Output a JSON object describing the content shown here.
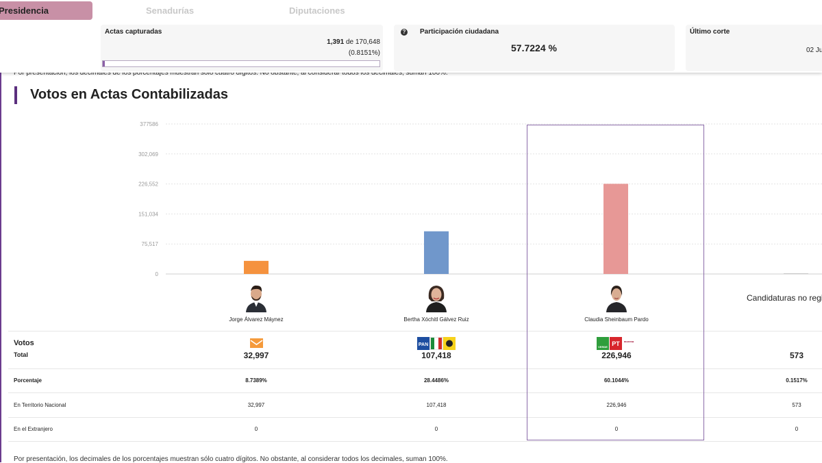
{
  "tabs": {
    "presidencia": "Presidencia",
    "senadurias": "Senadurías",
    "diputaciones": "Diputaciones"
  },
  "stats": {
    "actas_title": "Actas capturadas",
    "actas_count": "1,391",
    "actas_de": "de",
    "actas_total": "170,648",
    "actas_pct": "(0.8151%)",
    "actas_progress": 0.008151,
    "participacion_title": "Participación ciudadana",
    "participacion_value": "57.7224 %",
    "corte_title": "Último corte",
    "corte_value": "02 Ju"
  },
  "note_top": "Por presentación, los decimales de los porcentajes muestran sólo cuatro dígitos. No obstante, al considerar todos los decimales, suman 100%.",
  "section_title": "Votos en Actas Contabilizadas",
  "chart_data": {
    "type": "bar",
    "title": "Votos en Actas Contabilizadas",
    "categories": [
      "Jorge Álvarez Máynez",
      "Bertha Xóchitl Gálvez Ruiz",
      "Claudia Sheinbaum Pardo",
      "Candidaturas no registradas"
    ],
    "values": [
      32997,
      107418,
      226946,
      573
    ],
    "colors": [
      "#f5923e",
      "#7097cb",
      "#e79896",
      "#c8c8c8"
    ],
    "ylim": [
      0,
      377586
    ],
    "yticks": [
      "377586",
      "302,069",
      "226,552",
      "151,034",
      "75,517",
      "0"
    ],
    "ytick_values": [
      377586,
      302069,
      226552,
      151034,
      75517,
      0
    ]
  },
  "candidates": [
    {
      "name": "Jorge Álvarez Máynez",
      "total": "32,997",
      "pct": "8.7389%",
      "nacional": "32,997",
      "extranjero": "0",
      "party": "MC"
    },
    {
      "name": "Bertha Xóchitl Gálvez Ruiz",
      "total": "107,418",
      "pct": "28.4486%",
      "nacional": "107,418",
      "extranjero": "0",
      "party": "PAN PRI PRD"
    },
    {
      "name": "Claudia Sheinbaum Pardo",
      "total": "226,946",
      "pct": "60.1044%",
      "nacional": "226,946",
      "extranjero": "0",
      "party": "VERDE PT MORENA"
    },
    {
      "name": "Candidaturas no regis",
      "total": "573",
      "pct": "0.1517%",
      "nacional": "573",
      "extranjero": "0",
      "party": ""
    }
  ],
  "labels": {
    "votos": "Votos",
    "total": "Total",
    "porcentaje": "Porcentaje",
    "nacional": "En Territorio Nacional",
    "extranjero": "En el Extranjero",
    "logo_pan": "PAN",
    "logo_pt": "PT",
    "logo_morena": "morena",
    "logo_verde": "VERDE"
  },
  "note_bottom": "Por presentación, los decimales de los porcentajes muestran sólo cuatro dígitos. No obstante, al considerar todos los decimales, suman 100%."
}
